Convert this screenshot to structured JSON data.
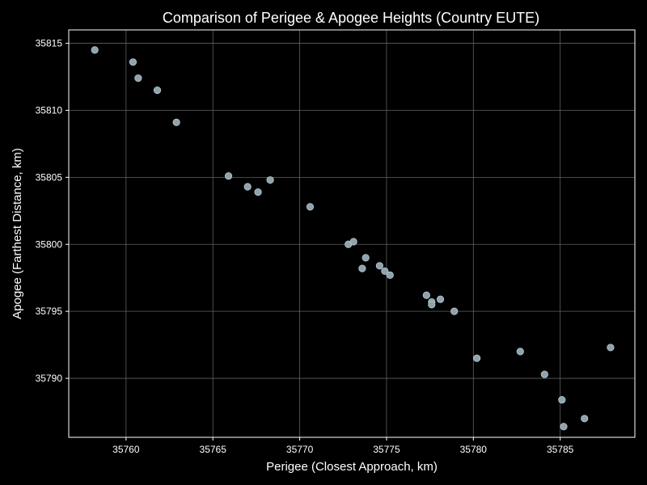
{
  "chart_data": {
    "type": "scatter",
    "title": "Comparison of Perigee & Apogee Heights (Country EUTE)",
    "xlabel": "Perigee (Closest Approach, km)",
    "ylabel": "Apogee (Farthest Distance, km)",
    "xlim": [
      35756.7,
      35789.3
    ],
    "ylim": [
      35785.6,
      35816.0
    ],
    "xticks": [
      35760,
      35765,
      35770,
      35775,
      35780,
      35785
    ],
    "yticks": [
      35790,
      35795,
      35800,
      35805,
      35810,
      35815
    ],
    "grid": true,
    "background_color": "#000000",
    "marker_color": "#8fa3ad",
    "points": [
      {
        "x": 35758.2,
        "y": 35814.5
      },
      {
        "x": 35760.4,
        "y": 35813.6
      },
      {
        "x": 35760.7,
        "y": 35812.4
      },
      {
        "x": 35761.8,
        "y": 35811.5
      },
      {
        "x": 35762.9,
        "y": 35809.1
      },
      {
        "x": 35765.9,
        "y": 35805.1
      },
      {
        "x": 35767.0,
        "y": 35804.3
      },
      {
        "x": 35767.6,
        "y": 35803.9
      },
      {
        "x": 35768.3,
        "y": 35804.8
      },
      {
        "x": 35770.6,
        "y": 35802.8
      },
      {
        "x": 35772.8,
        "y": 35800.0
      },
      {
        "x": 35773.1,
        "y": 35800.2
      },
      {
        "x": 35773.6,
        "y": 35798.2
      },
      {
        "x": 35773.8,
        "y": 35799.0
      },
      {
        "x": 35774.6,
        "y": 35798.4
      },
      {
        "x": 35774.9,
        "y": 35798.0
      },
      {
        "x": 35775.2,
        "y": 35797.7
      },
      {
        "x": 35777.3,
        "y": 35796.2
      },
      {
        "x": 35777.6,
        "y": 35795.7
      },
      {
        "x": 35777.6,
        "y": 35795.5
      },
      {
        "x": 35778.1,
        "y": 35795.9
      },
      {
        "x": 35778.9,
        "y": 35795.0
      },
      {
        "x": 35780.2,
        "y": 35791.5
      },
      {
        "x": 35782.7,
        "y": 35792.0
      },
      {
        "x": 35784.1,
        "y": 35790.3
      },
      {
        "x": 35785.1,
        "y": 35788.4
      },
      {
        "x": 35785.2,
        "y": 35786.4
      },
      {
        "x": 35786.4,
        "y": 35787.0
      },
      {
        "x": 35787.9,
        "y": 35792.3
      }
    ]
  }
}
